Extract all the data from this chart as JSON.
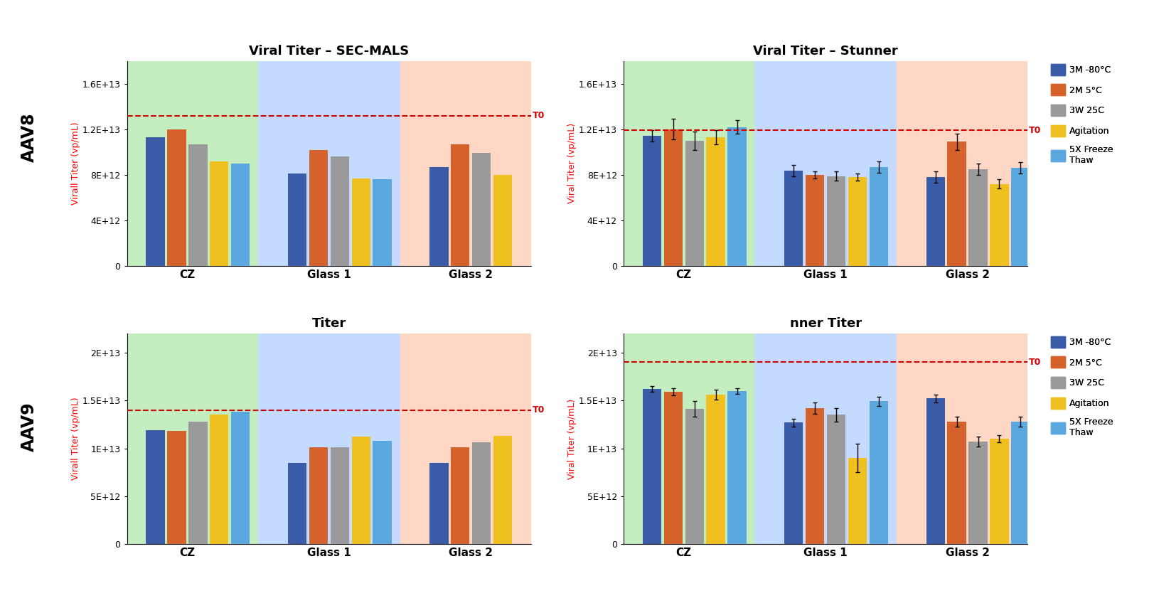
{
  "titles": [
    "Viral Titer – SEC-MALS",
    "Viral Titer – Stunner",
    "Titer",
    "nner Titer"
  ],
  "row_labels": [
    "AAV8",
    "AAV9"
  ],
  "group_labels": [
    "CZ",
    "Glass 1",
    "Glass 2"
  ],
  "bar_colors": [
    "#3A5BA8",
    "#D4622A",
    "#9A9A9A",
    "#F0C020",
    "#5BA8E0"
  ],
  "legend_labels": [
    "3M -80°C",
    "2M 5°C",
    "3W 25C",
    "Agitation",
    "5X Freeze\nThaw"
  ],
  "bg_colors": [
    "#C5EEC0",
    "#C5DAFF",
    "#FFD8C5"
  ],
  "aav8_secmals": {
    "CZ": [
      11300000000000.0,
      12000000000000.0,
      10700000000000.0,
      9200000000000.0,
      9000000000000.0
    ],
    "Glass 1": [
      8100000000000.0,
      10200000000000.0,
      9600000000000.0,
      7700000000000.0,
      7600000000000.0
    ],
    "Glass 2": [
      8700000000000.0,
      10700000000000.0,
      9900000000000.0,
      8000000000000.0,
      null
    ]
  },
  "aav8_secmals_t0": 13200000000000.0,
  "aav8_secmals_ylim": [
    0,
    18000000000000.0
  ],
  "aav8_secmals_yticks": [
    0,
    4000000000000.0,
    8000000000000.0,
    12000000000000.0,
    16000000000000.0
  ],
  "aav8_secmals_yticklabels": [
    "0",
    "4E+12",
    "8E+12",
    "1.2E+13",
    "1.6E+13"
  ],
  "aav8_stunner": {
    "CZ": [
      11400000000000.0,
      12000000000000.0,
      11000000000000.0,
      11300000000000.0,
      12200000000000.0
    ],
    "Glass 1": [
      8400000000000.0,
      8000000000000.0,
      7900000000000.0,
      7800000000000.0,
      8700000000000.0
    ],
    "Glass 2": [
      7800000000000.0,
      10900000000000.0,
      8500000000000.0,
      7200000000000.0,
      8600000000000.0
    ]
  },
  "aav8_stunner_errors": {
    "CZ": [
      500000000000.0,
      900000000000.0,
      800000000000.0,
      600000000000.0,
      600000000000.0
    ],
    "Glass 1": [
      500000000000.0,
      300000000000.0,
      400000000000.0,
      300000000000.0,
      500000000000.0
    ],
    "Glass 2": [
      500000000000.0,
      700000000000.0,
      500000000000.0,
      400000000000.0,
      500000000000.0
    ]
  },
  "aav8_stunner_t0": 11900000000000.0,
  "aav8_stunner_ylim": [
    0,
    18000000000000.0
  ],
  "aav8_stunner_yticks": [
    0,
    4000000000000.0,
    8000000000000.0,
    12000000000000.0,
    16000000000000.0
  ],
  "aav8_stunner_yticklabels": [
    "0",
    "4E+12",
    "8E+12",
    "1.2E+13",
    "1.6E+13"
  ],
  "aav9_secmals": {
    "CZ": [
      11900000000000.0,
      11800000000000.0,
      12800000000000.0,
      13500000000000.0,
      13800000000000.0
    ],
    "Glass 1": [
      8500000000000.0,
      10100000000000.0,
      10100000000000.0,
      11200000000000.0,
      10800000000000.0
    ],
    "Glass 2": [
      8500000000000.0,
      10100000000000.0,
      10600000000000.0,
      11300000000000.0,
      null
    ]
  },
  "aav9_secmals_t0": 14000000000000.0,
  "aav9_secmals_ylim": [
    0,
    22000000000000.0
  ],
  "aav9_secmals_yticks": [
    0,
    5000000000000.0,
    10000000000000.0,
    15000000000000.0,
    20000000000000.0
  ],
  "aav9_secmals_yticklabels": [
    "0",
    "5E+12",
    "1E+13",
    "1.5E+13",
    "2E+13"
  ],
  "aav9_stunner": {
    "CZ": [
      16200000000000.0,
      15900000000000.0,
      14100000000000.0,
      15600000000000.0,
      16000000000000.0
    ],
    "Glass 1": [
      12700000000000.0,
      14200000000000.0,
      13500000000000.0,
      9000000000000.0,
      14900000000000.0
    ],
    "Glass 2": [
      15200000000000.0,
      12800000000000.0,
      10700000000000.0,
      11000000000000.0,
      12800000000000.0
    ]
  },
  "aav9_stunner_errors": {
    "CZ": [
      300000000000.0,
      400000000000.0,
      800000000000.0,
      500000000000.0,
      300000000000.0
    ],
    "Glass 1": [
      400000000000.0,
      600000000000.0,
      700000000000.0,
      1500000000000.0,
      500000000000.0
    ],
    "Glass 2": [
      400000000000.0,
      500000000000.0,
      500000000000.0,
      400000000000.0,
      500000000000.0
    ]
  },
  "aav9_stunner_t0": 19000000000000.0,
  "aav9_stunner_ylim": [
    0,
    22000000000000.0
  ],
  "aav9_stunner_yticks": [
    0,
    5000000000000.0,
    10000000000000.0,
    15000000000000.0,
    20000000000000.0
  ],
  "aav9_stunner_yticklabels": [
    "0",
    "5E+12",
    "1E+13",
    "1.5E+13",
    "2E+13"
  ],
  "ylabel_left": "Virall Titer (vp/mL)",
  "ylabel_right": "Viral Titer (vp/mL)",
  "t0_color": "#CC0000",
  "background_color": "#FFFFFF"
}
